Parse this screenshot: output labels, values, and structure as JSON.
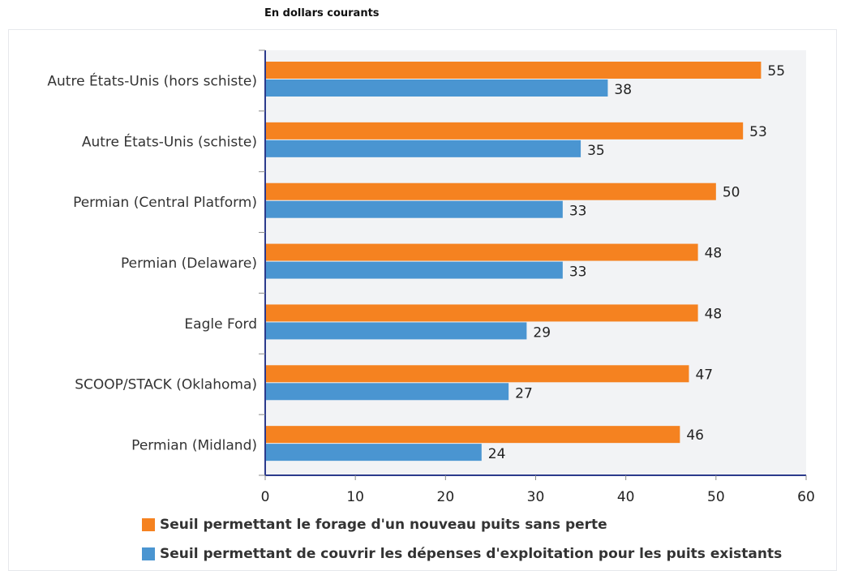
{
  "subtitle": "En dollars courants",
  "colors": {
    "orange": "#f58220",
    "blue": "#4a95d1",
    "axis": "#2b3a8c",
    "plot_bg": "#f2f3f5"
  },
  "chart_data": {
    "type": "bar",
    "orientation": "horizontal",
    "categories": [
      "Autre États-Unis (hors schiste)",
      "Autre États-Unis (schiste)",
      "Permian (Central Platform)",
      "Permian (Delaware)",
      "Eagle Ford",
      "SCOOP/STACK (Oklahoma)",
      "Permian (Midland)"
    ],
    "series": [
      {
        "name": "Seuil permettant le forage d'un nouveau puits sans perte",
        "values": [
          55,
          53,
          50,
          48,
          48,
          47,
          46
        ]
      },
      {
        "name": "Seuil permettant de couvrir les dépenses d'exploitation pour les puits existants",
        "values": [
          38,
          35,
          33,
          33,
          29,
          27,
          24
        ]
      }
    ],
    "xlim": [
      0,
      60
    ],
    "xticks": [
      "0",
      "10",
      "20",
      "30",
      "40",
      "50",
      "60"
    ],
    "legend_position": "bottom"
  }
}
